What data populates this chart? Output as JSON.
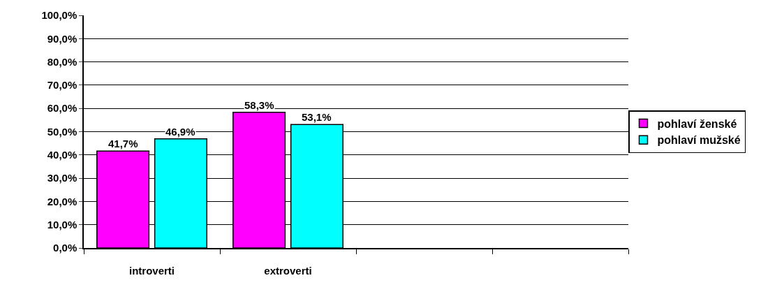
{
  "chart_data": {
    "type": "bar",
    "categories": [
      "introverti",
      "extroverti",
      null,
      null
    ],
    "series": [
      {
        "name": "pohlaví ženské",
        "color": "#ff00ff",
        "values": [
          41.7,
          58.3,
          null,
          null
        ],
        "value_labels": [
          "41,7%",
          "58,3%",
          null,
          null
        ]
      },
      {
        "name": "pohlaví mužské",
        "color": "#00ffff",
        "values": [
          46.9,
          53.1,
          null,
          null
        ],
        "value_labels": [
          "46,9%",
          "53,1%",
          null,
          null
        ]
      }
    ],
    "ylim": [
      0,
      100
    ],
    "yticks": [
      {
        "value": 0,
        "label": "0,0%"
      },
      {
        "value": 10,
        "label": "10,0%"
      },
      {
        "value": 20,
        "label": "20,0%"
      },
      {
        "value": 30,
        "label": "30,0%"
      },
      {
        "value": 40,
        "label": "40,0%"
      },
      {
        "value": 50,
        "label": "50,0%"
      },
      {
        "value": 60,
        "label": "60,0%"
      },
      {
        "value": 70,
        "label": "70,0%"
      },
      {
        "value": 80,
        "label": "80,0%"
      },
      {
        "value": 90,
        "label": "90,0%"
      },
      {
        "value": 100,
        "label": "100,0%"
      }
    ],
    "grid": "y",
    "legend": "right"
  }
}
